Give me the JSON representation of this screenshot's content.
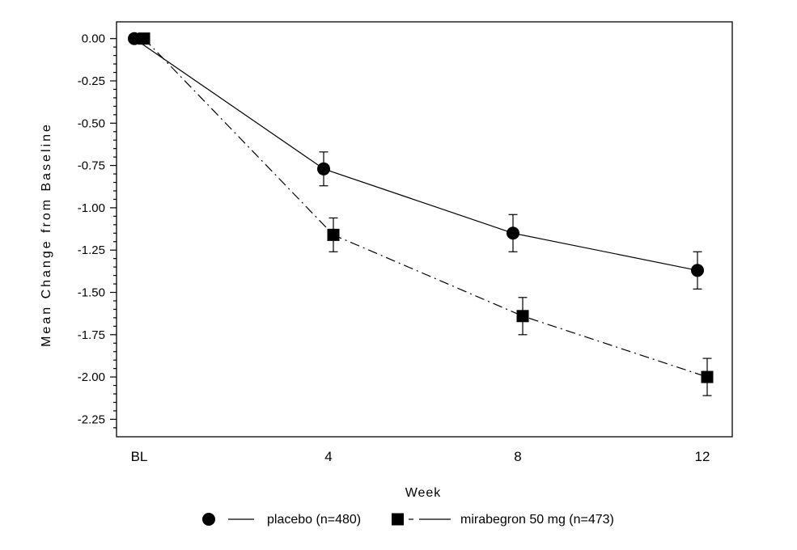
{
  "figure": {
    "background": "#ffffff",
    "ink": "#000000"
  },
  "chart_data": {
    "type": "line",
    "title": "",
    "xlabel": "Week",
    "ylabel": "Mean Change from Baseline",
    "categories": [
      "BL",
      "4",
      "8",
      "12"
    ],
    "grid": false,
    "legend_position": "bottom",
    "ylim": [
      0.1,
      -2.36
    ],
    "yticks": {
      "labels": [
        "0.00",
        "-0.25",
        "-0.50",
        "-0.75",
        "-1.00",
        "-1.25",
        "-1.50",
        "-1.75",
        "-2.00",
        "-2.25"
      ],
      "minor_step": 0.05
    },
    "series": [
      {
        "name": "placebo (n=480)",
        "marker": "circle",
        "line_style": "solid",
        "color": "#000000",
        "values": [
          0.0,
          -0.77,
          -1.15,
          -1.37
        ],
        "error": [
          0,
          0.1,
          0.11,
          0.11
        ]
      },
      {
        "name": "mirabegron 50 mg (n=473)",
        "marker": "square",
        "line_style": "dash-dot",
        "color": "#000000",
        "values": [
          0.0,
          -1.16,
          -1.64,
          -2.0
        ],
        "error": [
          0,
          0.1,
          0.11,
          0.11
        ]
      }
    ]
  }
}
